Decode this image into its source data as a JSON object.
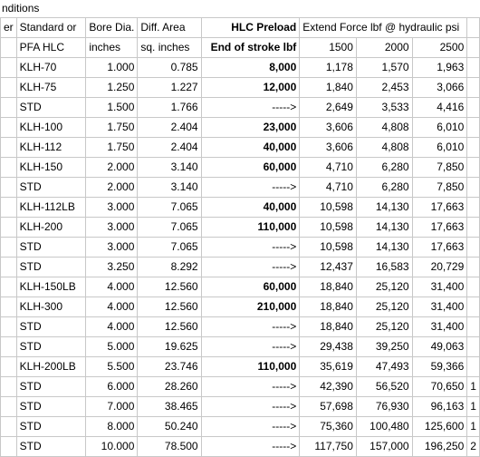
{
  "title": "nditions",
  "header": {
    "row1": [
      "er",
      "Standard or",
      "Bore Dia.",
      "Diff. Area",
      "HLC Preload",
      "Extend Force lbf  @ hydraulic psi",
      "",
      ""
    ],
    "row2": [
      "",
      "PFA HLC",
      "inches",
      "sq. inches",
      "End of stroke lbf",
      "1500",
      "2000",
      "2500"
    ]
  },
  "rows": [
    {
      "type": "KLH-70",
      "bore": "1.000",
      "area": "0.785",
      "preload": "8,000",
      "f1500": "1,178",
      "f2000": "1,570",
      "f2500": "1,963",
      "bold": true
    },
    {
      "type": "KLH-75",
      "bore": "1.250",
      "area": "1.227",
      "preload": "12,000",
      "f1500": "1,840",
      "f2000": "2,453",
      "f2500": "3,066",
      "bold": true
    },
    {
      "type": "STD",
      "bore": "1.500",
      "area": "1.766",
      "preload": "----->",
      "f1500": "2,649",
      "f2000": "3,533",
      "f2500": "4,416",
      "bold": false
    },
    {
      "type": "KLH-100",
      "bore": "1.750",
      "area": "2.404",
      "preload": "23,000",
      "f1500": "3,606",
      "f2000": "4,808",
      "f2500": "6,010",
      "bold": true
    },
    {
      "type": "KLH-112",
      "bore": "1.750",
      "area": "2.404",
      "preload": "40,000",
      "f1500": "3,606",
      "f2000": "4,808",
      "f2500": "6,010",
      "bold": true
    },
    {
      "type": "KLH-150",
      "bore": "2.000",
      "area": "3.140",
      "preload": "60,000",
      "f1500": "4,710",
      "f2000": "6,280",
      "f2500": "7,850",
      "bold": true
    },
    {
      "type": "STD",
      "bore": "2.000",
      "area": "3.140",
      "preload": "----->",
      "f1500": "4,710",
      "f2000": "6,280",
      "f2500": "7,850",
      "bold": false
    },
    {
      "type": "KLH-112LB",
      "bore": "3.000",
      "area": "7.065",
      "preload": "40,000",
      "f1500": "10,598",
      "f2000": "14,130",
      "f2500": "17,663",
      "bold": true
    },
    {
      "type": "KLH-200",
      "bore": "3.000",
      "area": "7.065",
      "preload": "110,000",
      "f1500": "10,598",
      "f2000": "14,130",
      "f2500": "17,663",
      "bold": true
    },
    {
      "type": "STD",
      "bore": "3.000",
      "area": "7.065",
      "preload": "----->",
      "f1500": "10,598",
      "f2000": "14,130",
      "f2500": "17,663",
      "bold": false
    },
    {
      "type": "STD",
      "bore": "3.250",
      "area": "8.292",
      "preload": "----->",
      "f1500": "12,437",
      "f2000": "16,583",
      "f2500": "20,729",
      "bold": false
    },
    {
      "type": "KLH-150LB",
      "bore": "4.000",
      "area": "12.560",
      "preload": "60,000",
      "f1500": "18,840",
      "f2000": "25,120",
      "f2500": "31,400",
      "bold": true
    },
    {
      "type": "KLH-300",
      "bore": "4.000",
      "area": "12.560",
      "preload": "210,000",
      "f1500": "18,840",
      "f2000": "25,120",
      "f2500": "31,400",
      "bold": true
    },
    {
      "type": "STD",
      "bore": "4.000",
      "area": "12.560",
      "preload": "----->",
      "f1500": "18,840",
      "f2000": "25,120",
      "f2500": "31,400",
      "bold": false
    },
    {
      "type": "STD",
      "bore": "5.000",
      "area": "19.625",
      "preload": "----->",
      "f1500": "29,438",
      "f2000": "39,250",
      "f2500": "49,063",
      "bold": false
    },
    {
      "type": "KLH-200LB",
      "bore": "5.500",
      "area": "23.746",
      "preload": "110,000",
      "f1500": "35,619",
      "f2000": "47,493",
      "f2500": "59,366",
      "bold": true
    },
    {
      "type": "STD",
      "bore": "6.000",
      "area": "28.260",
      "preload": "----->",
      "f1500": "42,390",
      "f2000": "56,520",
      "f2500": "70,650",
      "bold": false
    },
    {
      "type": "STD",
      "bore": "7.000",
      "area": "38.465",
      "preload": "----->",
      "f1500": "57,698",
      "f2000": "76,930",
      "f2500": "96,163",
      "bold": false
    },
    {
      "type": "STD",
      "bore": "8.000",
      "area": "50.240",
      "preload": "----->",
      "f1500": "75,360",
      "f2000": "100,480",
      "f2500": "125,600",
      "bold": false
    },
    {
      "type": "STD",
      "bore": "10.000",
      "area": "78.500",
      "preload": "----->",
      "f1500": "117,750",
      "f2000": "157,000",
      "f2500": "196,250",
      "bold": false
    }
  ],
  "right_edge": [
    "",
    "",
    "",
    "",
    "",
    "",
    "",
    "",
    "",
    "",
    "",
    "",
    "",
    "",
    "",
    "",
    "1",
    "1",
    "1",
    "2"
  ]
}
